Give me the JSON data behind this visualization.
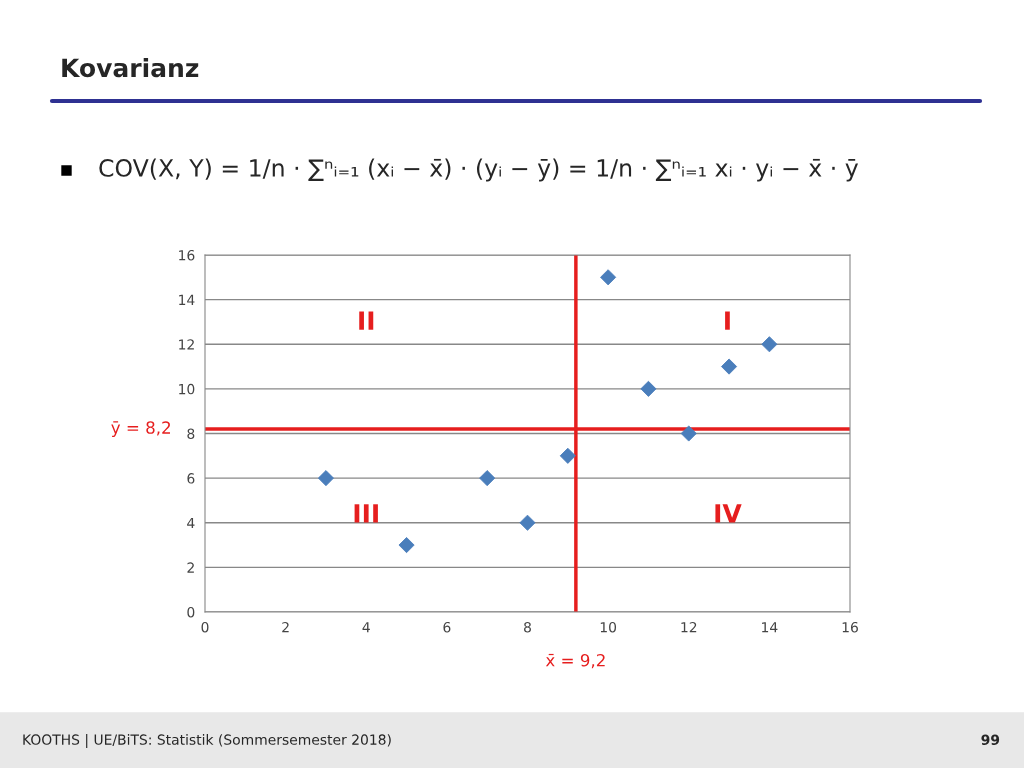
{
  "chart_data": {
    "type": "scatter",
    "title": "Kovarianz",
    "subtitle": "COV(X, Y) = 1/n · ∑ⁿᵢ₌₁ (xᵢ − x̄) · (yᵢ − ȳ) = 1/n · ∑ⁿᵢ₌₁ xᵢ · yᵢ − x̄ · ȳ",
    "x": [
      3,
      5,
      7,
      8,
      9,
      10,
      11,
      12,
      13,
      14
    ],
    "series": [
      {
        "color": "#4a7ebb",
        "values": [
          6,
          3,
          6,
          4,
          7,
          15,
          10,
          8,
          11,
          12
        ]
      }
    ],
    "xlim": [
      0,
      16
    ],
    "ylim": [
      0,
      16
    ],
    "xticks": [
      0,
      2,
      4,
      6,
      8,
      10,
      12,
      14,
      16
    ],
    "yticks": [
      0,
      2,
      4,
      6,
      8,
      10,
      12,
      14,
      16
    ],
    "grid": "y",
    "marker": "diamond",
    "legend": false,
    "ref_lines": [
      {
        "axis": "x",
        "value": 9.2,
        "label": "x̄ = 9,2",
        "color": "#e61e1e"
      },
      {
        "axis": "y",
        "value": 8.2,
        "label": "ȳ = 8,2",
        "color": "#e61e1e"
      }
    ],
    "annotations": [
      "I",
      "II",
      "III",
      "IV",
      "KOOTHS | UE/BiTS: Statistik (Sommersemester 2018)",
      "99"
    ]
  }
}
